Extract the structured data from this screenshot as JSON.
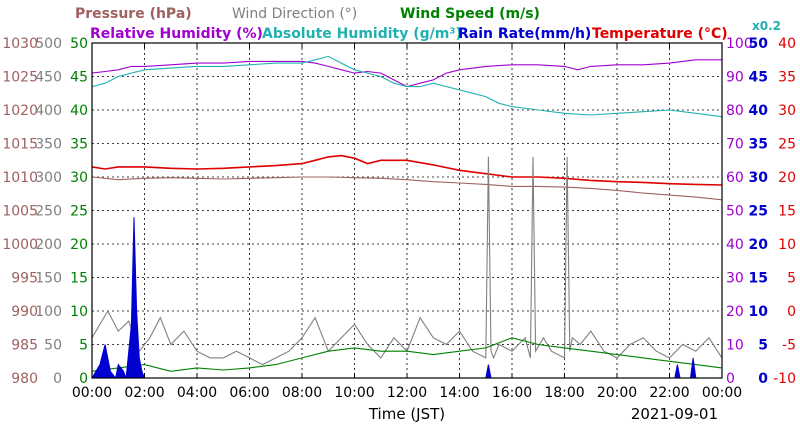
{
  "chart_data": {
    "type": "line",
    "title": "",
    "legend": {
      "row1": [
        {
          "label": "Pressure (hPa)",
          "color": "#a06060"
        },
        {
          "label": "Wind Direction (°)",
          "color": "#808080"
        },
        {
          "label": "Wind Speed (m/s)",
          "color": "#008000"
        }
      ],
      "row2": [
        {
          "label": "Relative Humidity (%)",
          "color": "#a000d0"
        },
        {
          "label": "Absolute Humidity (g/m³)",
          "color": "#20b0b0"
        },
        {
          "label": "Rain Rate(mm/h)",
          "color": "#0000d0"
        },
        {
          "label": "Temperature (°C)",
          "color": "#e00000"
        }
      ],
      "ah_scale_note": "x0.2"
    },
    "xlabel": "Time (JST)",
    "date_label": "2021-09-01",
    "x_tick_labels": [
      "00:00",
      "02:00",
      "04:00",
      "06:00",
      "08:00",
      "10:00",
      "12:00",
      "14:00",
      "16:00",
      "18:00",
      "20:00",
      "22:00",
      "00:00"
    ],
    "x_range_hours": [
      0,
      24
    ],
    "axes": {
      "pressure": {
        "ticks": [
          "1030",
          "1025",
          "1020",
          "1015",
          "1010",
          "1005",
          "1000",
          "995",
          "990",
          "985",
          "980"
        ],
        "range": [
          980,
          1030
        ],
        "color": "#a06060"
      },
      "wind_dir": {
        "ticks": [
          "500",
          "450",
          "400",
          "350",
          "300",
          "250",
          "200",
          "150",
          "100",
          "50",
          "0"
        ],
        "range": [
          0,
          500
        ],
        "color": "#808080"
      },
      "wind_speed": {
        "ticks": [
          "50",
          "45",
          "40",
          "35",
          "30",
          "25",
          "20",
          "15",
          "10",
          "5",
          "0"
        ],
        "range": [
          0,
          50
        ],
        "color": "#008000"
      },
      "humidity": {
        "ticks": [
          "100",
          "90",
          "80",
          "70",
          "60",
          "50",
          "40",
          "30",
          "20",
          "10",
          "0"
        ],
        "range": [
          0,
          100
        ],
        "color": "#a000d0"
      },
      "rain": {
        "ticks": [
          "50",
          "45",
          "40",
          "35",
          "30",
          "25",
          "20",
          "15",
          "10",
          "5",
          "0"
        ],
        "range": [
          0,
          50
        ],
        "color": "#0000d0"
      },
      "temperature": {
        "ticks": [
          "40",
          "35",
          "30",
          "25",
          "20",
          "15",
          "10",
          "5",
          "0",
          "-5",
          "-10"
        ],
        "range": [
          -10,
          40
        ],
        "color": "#e00000"
      }
    },
    "series": [
      {
        "name": "Relative Humidity (%)",
        "axis": "humidity",
        "color": "#a000d0",
        "x": [
          0,
          0.5,
          1,
          1.5,
          2,
          3,
          4,
          5,
          6,
          7,
          8,
          8.5,
          9,
          9.5,
          10,
          10.5,
          11,
          11.5,
          12,
          12.5,
          13,
          13.5,
          14,
          15,
          16,
          17,
          18,
          18.5,
          19,
          20,
          21,
          22,
          23,
          24
        ],
        "y": [
          91,
          91.5,
          92,
          93,
          93,
          93.5,
          94,
          94,
          94.5,
          94.5,
          94.5,
          94,
          93,
          92,
          91,
          91.5,
          91,
          89,
          87,
          88,
          89,
          91,
          92,
          93,
          93.5,
          93.5,
          93,
          92,
          93,
          93.5,
          93.5,
          94,
          95,
          95
        ]
      },
      {
        "name": "Absolute Humidity (g/m³)",
        "axis": "humidity",
        "color": "#20b0b0",
        "x": [
          0,
          0.5,
          1,
          1.5,
          2,
          3,
          4,
          5,
          6,
          7,
          8,
          8.5,
          9,
          9.5,
          10,
          10.5,
          11,
          11.5,
          12,
          12.5,
          13,
          13.5,
          14,
          14.5,
          15,
          15.5,
          16,
          17,
          18,
          19,
          20,
          21,
          22,
          23,
          24
        ],
        "y": [
          87,
          88,
          90,
          91,
          92,
          92.5,
          93,
          93,
          93.5,
          94,
          94,
          95,
          96,
          94,
          92,
          91,
          90,
          88,
          87,
          87,
          88,
          87,
          86,
          85,
          84,
          82,
          81,
          80,
          79,
          78.5,
          79,
          79.5,
          80,
          79,
          78
        ]
      },
      {
        "name": "Temperature (°C)",
        "axis": "temperature",
        "color": "#e00000",
        "x": [
          0,
          0.5,
          1,
          2,
          3,
          4,
          5,
          6,
          7,
          8,
          8.5,
          9,
          9.5,
          10,
          10.5,
          11,
          12,
          13,
          14,
          15,
          16,
          17,
          18,
          19,
          20,
          21,
          22,
          23,
          24
        ],
        "y": [
          21.5,
          21.2,
          21.5,
          21.5,
          21.3,
          21.2,
          21.3,
          21.5,
          21.7,
          22,
          22.5,
          23,
          23.2,
          22.8,
          22,
          22.5,
          22.5,
          21.8,
          21,
          20.5,
          20,
          20,
          19.8,
          19.5,
          19.3,
          19.2,
          19,
          18.9,
          18.8
        ]
      },
      {
        "name": "Pressure (hPa)",
        "axis": "pressure",
        "color": "#a06060",
        "x": [
          0,
          1,
          2,
          3,
          4,
          5,
          6,
          7,
          8,
          9,
          10,
          11,
          12,
          13,
          14,
          15,
          16,
          17,
          18,
          19,
          20,
          21,
          22,
          23,
          24
        ],
        "y": [
          1010,
          1009.6,
          1009.8,
          1009.9,
          1009.8,
          1009.7,
          1009.8,
          1009.9,
          1010,
          1010,
          1009.9,
          1009.8,
          1009.6,
          1009.3,
          1009.1,
          1008.9,
          1008.6,
          1008.6,
          1008.5,
          1008.3,
          1008,
          1007.6,
          1007.3,
          1007,
          1006.6
        ]
      },
      {
        "name": "Wind Direction (°)",
        "axis": "wind_dir",
        "color": "#808080",
        "x": [
          0,
          0.3,
          0.6,
          1,
          1.4,
          1.8,
          2.2,
          2.6,
          3,
          3.5,
          4,
          4.5,
          5,
          5.5,
          6,
          6.5,
          7,
          7.5,
          8,
          8.5,
          9,
          9.5,
          10,
          10.5,
          11,
          11.5,
          12,
          12.5,
          13,
          13.5,
          14,
          14.5,
          15,
          15.1,
          15.2,
          15.3,
          15.5,
          16,
          16.5,
          16.7,
          16.8,
          16.9,
          17.2,
          17.5,
          18,
          18.1,
          18.2,
          18.3,
          18.6,
          19,
          19.5,
          20,
          20.5,
          21,
          21.5,
          22,
          22.5,
          23,
          23.5,
          24
        ],
        "y": [
          60,
          80,
          100,
          70,
          85,
          40,
          60,
          90,
          50,
          70,
          40,
          30,
          30,
          40,
          30,
          20,
          30,
          40,
          60,
          90,
          40,
          60,
          80,
          50,
          30,
          60,
          40,
          90,
          60,
          50,
          70,
          40,
          30,
          330,
          40,
          30,
          50,
          40,
          60,
          30,
          330,
          40,
          60,
          40,
          30,
          330,
          40,
          60,
          50,
          70,
          40,
          30,
          50,
          60,
          40,
          30,
          50,
          40,
          60,
          30
        ]
      },
      {
        "name": "Wind Speed (m/s)",
        "axis": "wind_speed",
        "color": "#008000",
        "x": [
          0,
          1,
          2,
          3,
          4,
          5,
          6,
          7,
          8,
          9,
          10,
          11,
          12,
          13,
          14,
          15,
          16,
          17,
          18,
          19,
          20,
          21,
          22,
          23,
          24
        ],
        "y": [
          1,
          1.5,
          2,
          1,
          1.5,
          1.2,
          1.5,
          2,
          3,
          4,
          4.5,
          4,
          4,
          3.5,
          4,
          4.5,
          6,
          5,
          4.5,
          4,
          3.5,
          3,
          2.5,
          2,
          1.5
        ]
      },
      {
        "name": "Rain Rate(mm/h)",
        "axis": "rain",
        "color": "#0000d0",
        "fill": true,
        "x": [
          0,
          0.3,
          0.5,
          0.7,
          0.9,
          1,
          1.2,
          1.3,
          1.5,
          1.6,
          1.7,
          1.8,
          1.9,
          2,
          2.2,
          15,
          15.1,
          15.2,
          15.3,
          22.2,
          22.3,
          22.4,
          22.5,
          22.8,
          22.9,
          23,
          24
        ],
        "y": [
          0,
          2,
          5,
          1,
          0,
          2,
          1,
          0,
          8,
          24,
          10,
          3,
          1,
          0,
          0,
          0,
          2,
          0,
          0,
          0,
          2,
          0,
          0,
          0,
          3,
          0,
          0
        ]
      }
    ]
  }
}
